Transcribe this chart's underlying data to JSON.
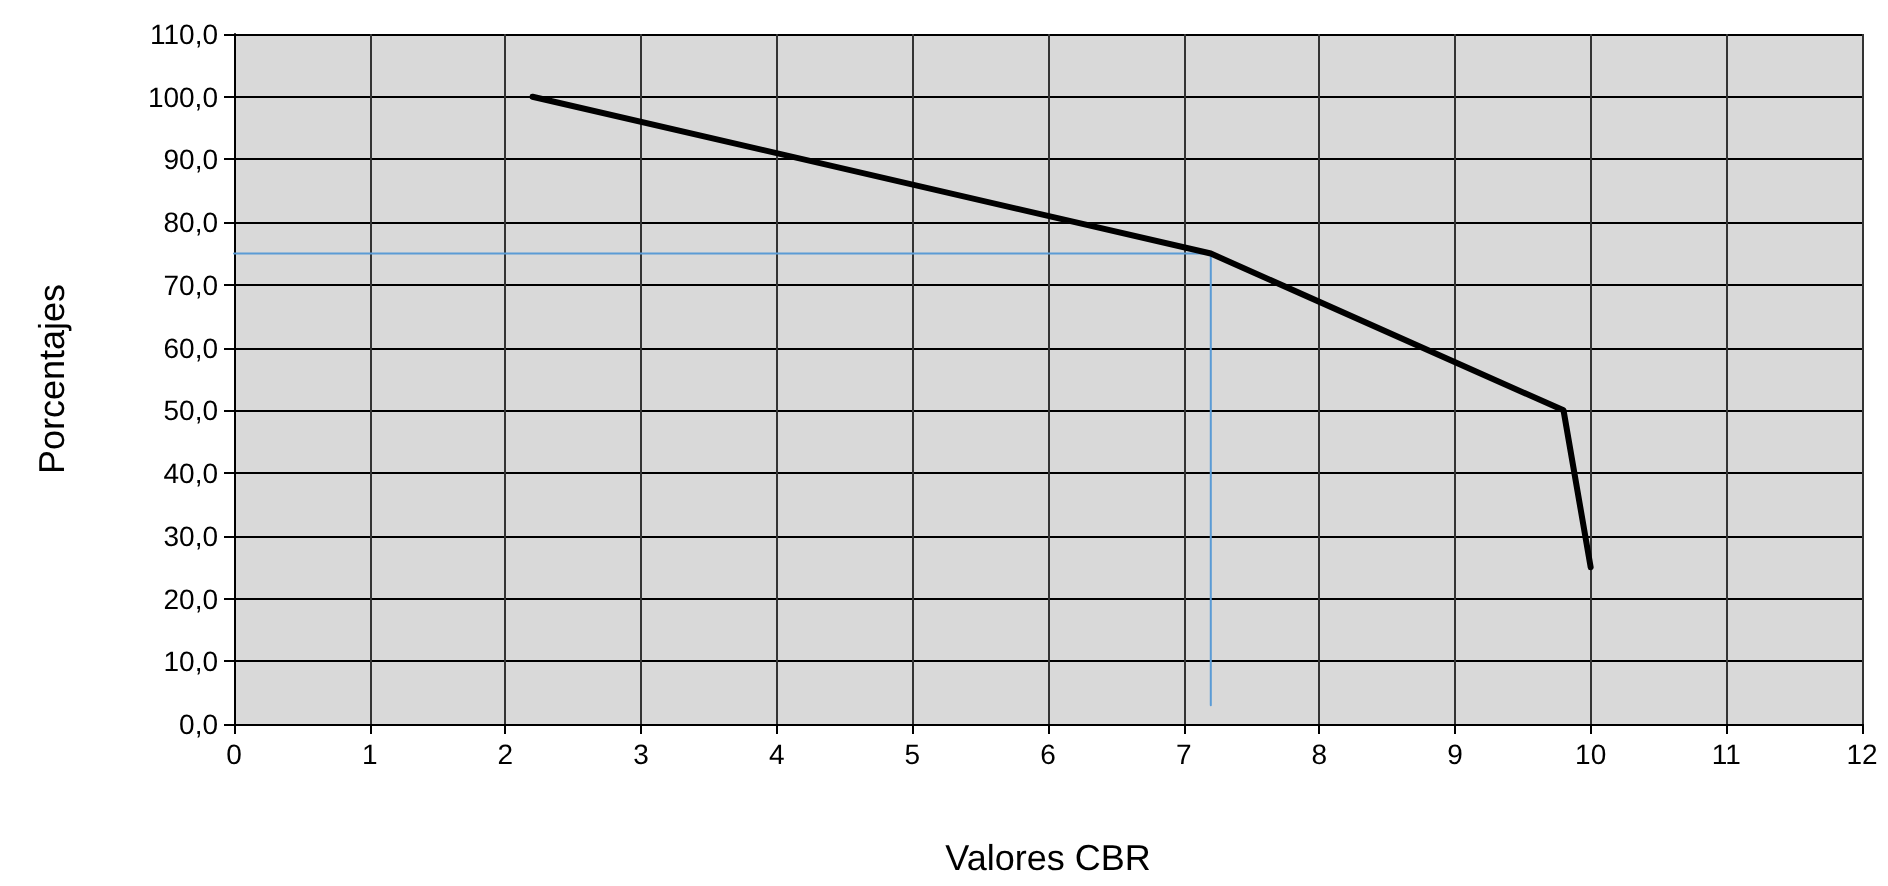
{
  "chart_data": {
    "type": "line",
    "xlabel": "Valores CBR",
    "ylabel": "Porcentajes",
    "series": [
      {
        "color": "#5b9bd5",
        "x": [
          0,
          7.2,
          7.2
        ],
        "values": [
          75,
          75,
          3
        ]
      },
      {
        "color": "#000000",
        "x": [
          2.2,
          7.2,
          9.8,
          10
        ],
        "values": [
          100,
          75,
          50,
          25
        ]
      }
    ],
    "xlim": [
      0,
      12
    ],
    "xticks": [
      0,
      1,
      2,
      3,
      4,
      5,
      6,
      7,
      8,
      9,
      10,
      11,
      12
    ],
    "ylim": [
      0,
      110
    ],
    "yticks": [
      {
        "value": 0,
        "label": "0,0"
      },
      {
        "value": 10,
        "label": "10,0"
      },
      {
        "value": 20,
        "label": "20,0"
      },
      {
        "value": 30,
        "label": "30,0"
      },
      {
        "value": 40,
        "label": "40,0"
      },
      {
        "value": 50,
        "label": "50,0"
      },
      {
        "value": 60,
        "label": "60,0"
      },
      {
        "value": 70,
        "label": "70,0"
      },
      {
        "value": 80,
        "label": "80,0"
      },
      {
        "value": 90,
        "label": "90,0"
      },
      {
        "value": 100,
        "label": "100,0"
      },
      {
        "value": 110,
        "label": "110,0"
      }
    ],
    "grid": true,
    "marker": "none",
    "line_style": "solid"
  }
}
